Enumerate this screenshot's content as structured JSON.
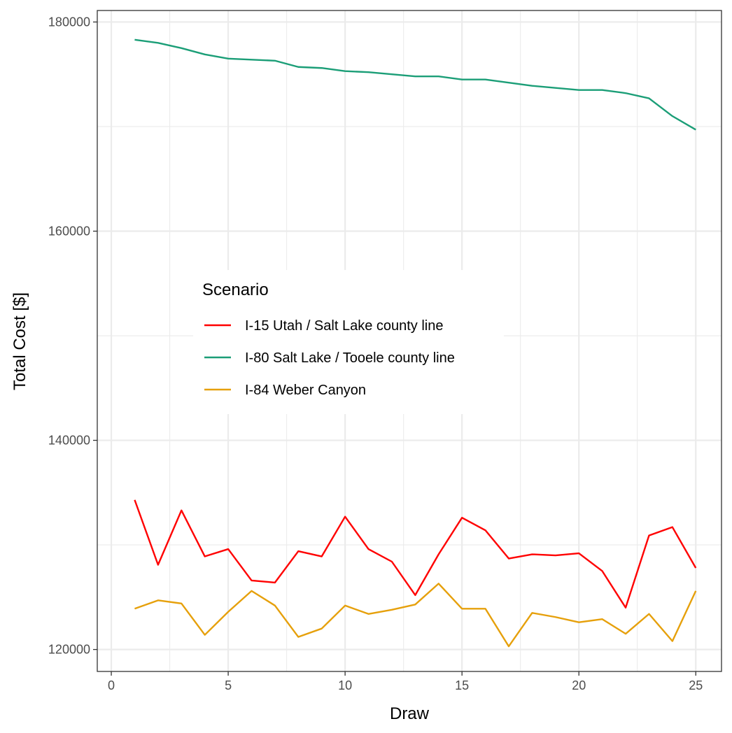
{
  "chart_data": {
    "type": "line",
    "title": "",
    "xlabel": "Draw",
    "ylabel": "Total Cost [$]",
    "xlim": [
      -0.6,
      26.1
    ],
    "ylim": [
      117900,
      181100
    ],
    "x_ticks": [
      0,
      5,
      10,
      15,
      20,
      25
    ],
    "y_ticks": [
      120000,
      140000,
      160000,
      180000
    ],
    "grid": true,
    "legend": {
      "title": "Scenario",
      "placement": "center-left"
    },
    "x": [
      1,
      2,
      3,
      4,
      5,
      6,
      7,
      8,
      9,
      10,
      11,
      12,
      13,
      14,
      15,
      16,
      17,
      18,
      19,
      20,
      21,
      22,
      23,
      24,
      25
    ],
    "series": [
      {
        "name": "I-15 Utah / Salt Lake county line",
        "color": "#ff0000",
        "values": [
          134300,
          128100,
          133300,
          128900,
          129600,
          126600,
          126400,
          129400,
          128900,
          132700,
          129600,
          128400,
          125200,
          129100,
          132600,
          131400,
          128700,
          129100,
          129000,
          129200,
          127500,
          124000,
          130900,
          131700,
          127800
        ]
      },
      {
        "name": "I-80 Salt Lake / Tooele county line",
        "color": "#1b9e77",
        "values": [
          178300,
          178000,
          177500,
          176900,
          176500,
          176400,
          176300,
          175700,
          175600,
          175300,
          175200,
          175000,
          174800,
          174800,
          174500,
          174500,
          174200,
          173900,
          173700,
          173500,
          173500,
          173200,
          172700,
          171000,
          169700
        ]
      },
      {
        "name": "I-84 Weber Canyon",
        "color": "#e6a00b",
        "values": [
          123900,
          124700,
          124400,
          121400,
          123600,
          125600,
          124200,
          121200,
          122000,
          124200,
          123400,
          123800,
          124300,
          126300,
          123900,
          123900,
          120300,
          123500,
          123100,
          122600,
          122900,
          121500,
          123400,
          120800,
          125600
        ]
      }
    ]
  }
}
